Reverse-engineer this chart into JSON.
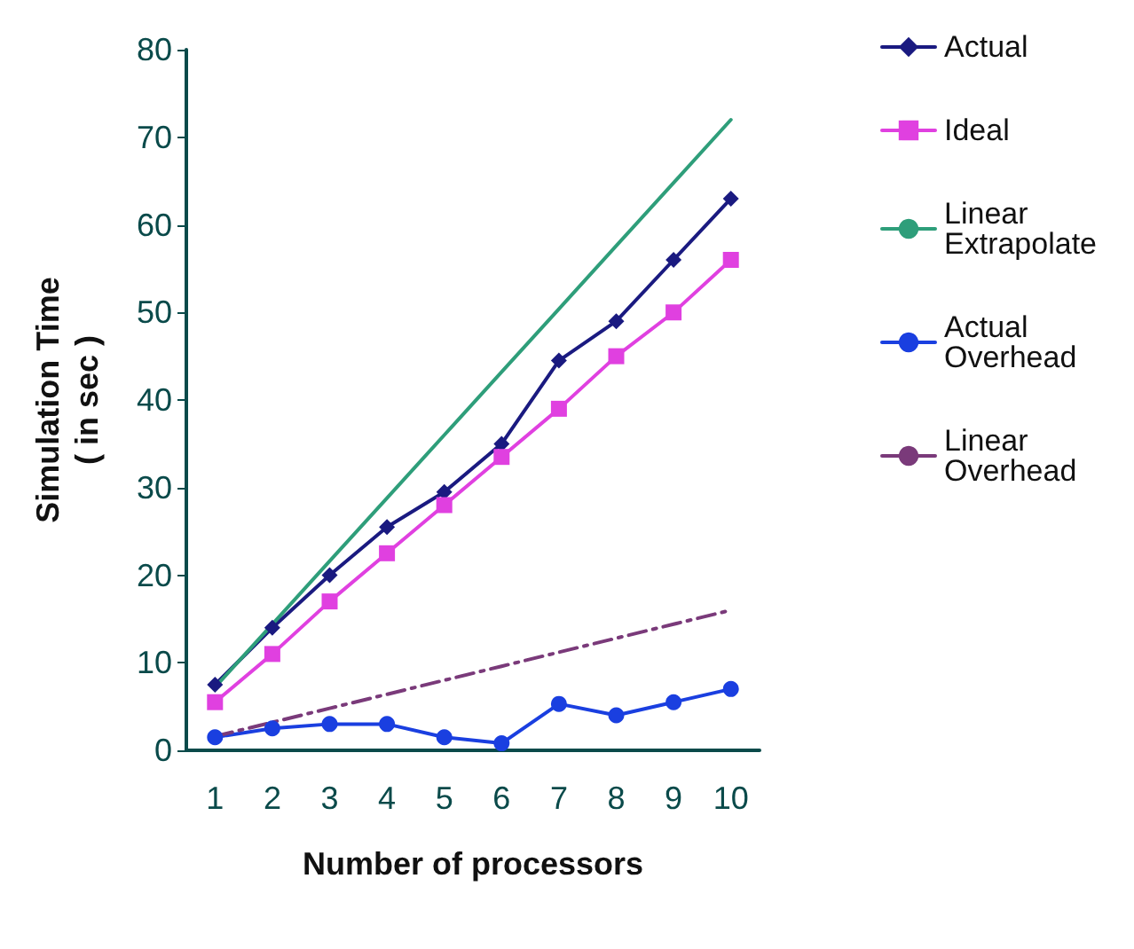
{
  "chart_data": {
    "type": "line",
    "xlabel": "Number of processors",
    "ylabel": "Simulation Time\n( in sec )",
    "categories": [
      "1",
      "2",
      "3",
      "4",
      "5",
      "6",
      "7",
      "8",
      "9",
      "10"
    ],
    "series": [
      {
        "name": "Actual",
        "color": "#1a1a80",
        "marker": "diamond",
        "values": [
          7.5,
          14,
          20,
          25.5,
          29.5,
          35,
          44.5,
          49,
          56,
          63
        ]
      },
      {
        "name": "Ideal",
        "color": "#e040e0",
        "marker": "square",
        "values": [
          5.5,
          11,
          17,
          22.5,
          28,
          33.5,
          39,
          45,
          50,
          56
        ]
      },
      {
        "name": "Linear\nExtrapolate",
        "color": "#2e9e7a",
        "marker": "none",
        "values": [
          7.2,
          14.4,
          21.6,
          28.8,
          36,
          43.2,
          50.4,
          57.6,
          64.8,
          72
        ]
      },
      {
        "name": "Actual\nOverhead",
        "color": "#1a3fe0",
        "marker": "circle",
        "values": [
          1.5,
          2.5,
          3,
          3,
          1.5,
          0.8,
          5.3,
          4,
          5.5,
          7
        ]
      },
      {
        "name": "Linear\nOverhead",
        "color": "#7a3a7a",
        "marker": "none",
        "line_style": "dashed",
        "values": [
          1.6,
          3.2,
          4.8,
          6.4,
          8,
          9.6,
          11.2,
          12.8,
          14.4,
          16
        ]
      }
    ],
    "ylim": [
      0,
      80
    ],
    "yticks": [
      0,
      10,
      20,
      30,
      40,
      50,
      60,
      70,
      80
    ],
    "grid": false,
    "legend": "right"
  }
}
